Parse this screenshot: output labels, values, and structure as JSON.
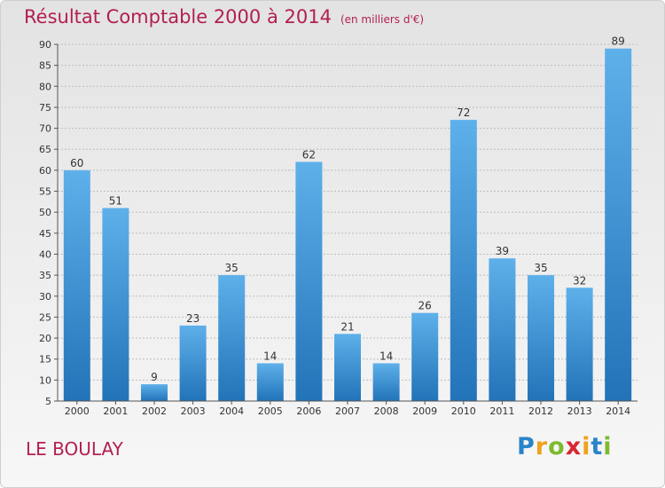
{
  "chart_data": {
    "type": "bar",
    "title": "Résultat Comptable 2000 à 2014",
    "subtitle": "(en milliers d'€)",
    "categories": [
      "2000",
      "2001",
      "2002",
      "2003",
      "2004",
      "2005",
      "2006",
      "2007",
      "2008",
      "2009",
      "2010",
      "2011",
      "2012",
      "2013",
      "2014"
    ],
    "values": [
      60,
      51,
      9,
      23,
      35,
      14,
      62,
      21,
      14,
      26,
      72,
      39,
      35,
      32,
      89
    ],
    "ylim": [
      5,
      90
    ],
    "yticks": [
      5,
      10,
      15,
      20,
      25,
      30,
      35,
      40,
      45,
      50,
      55,
      60,
      65,
      70,
      75,
      80,
      85,
      90
    ],
    "grid": true,
    "bar_color": "#3d92d3"
  },
  "place_name": "LE BOULAY",
  "logo": {
    "letters": [
      "P",
      "r",
      "o",
      "x",
      "i",
      "t",
      "i"
    ],
    "colors": [
      "#2a84c8",
      "#f0a21d",
      "#7dbb2e",
      "#d8262f",
      "#f0a21d",
      "#2a84c8",
      "#7dbb2e"
    ]
  }
}
